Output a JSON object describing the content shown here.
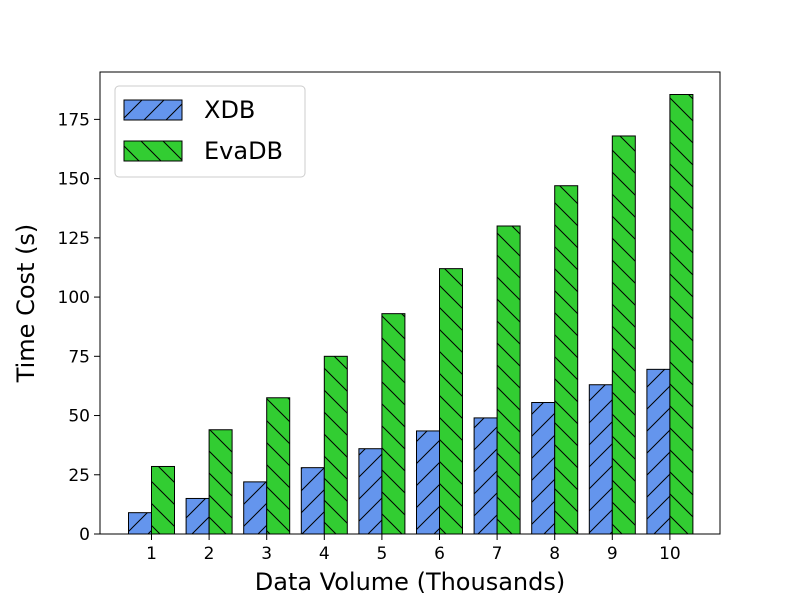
{
  "chart_data": {
    "type": "bar",
    "title": "",
    "xlabel": "Data Volume (Thousands)",
    "ylabel": "Time Cost (s)",
    "categories": [
      "1",
      "2",
      "3",
      "4",
      "5",
      "6",
      "7",
      "8",
      "9",
      "10"
    ],
    "series": [
      {
        "name": "XDB",
        "color": "#6495ED",
        "hatch": "forward-diagonal",
        "values": [
          9,
          15,
          22,
          28,
          36,
          43.5,
          49,
          55.5,
          63,
          69.5
        ]
      },
      {
        "name": "EvaDB",
        "color": "#32CD32",
        "hatch": "backward-diagonal",
        "values": [
          28.5,
          44,
          57.5,
          75,
          93,
          112,
          130,
          147,
          168,
          185.5
        ]
      }
    ],
    "ylim": [
      0,
      195
    ],
    "yticks": [
      0,
      25,
      50,
      75,
      100,
      125,
      150,
      175
    ],
    "grid": false,
    "legend_position": "top-left"
  }
}
